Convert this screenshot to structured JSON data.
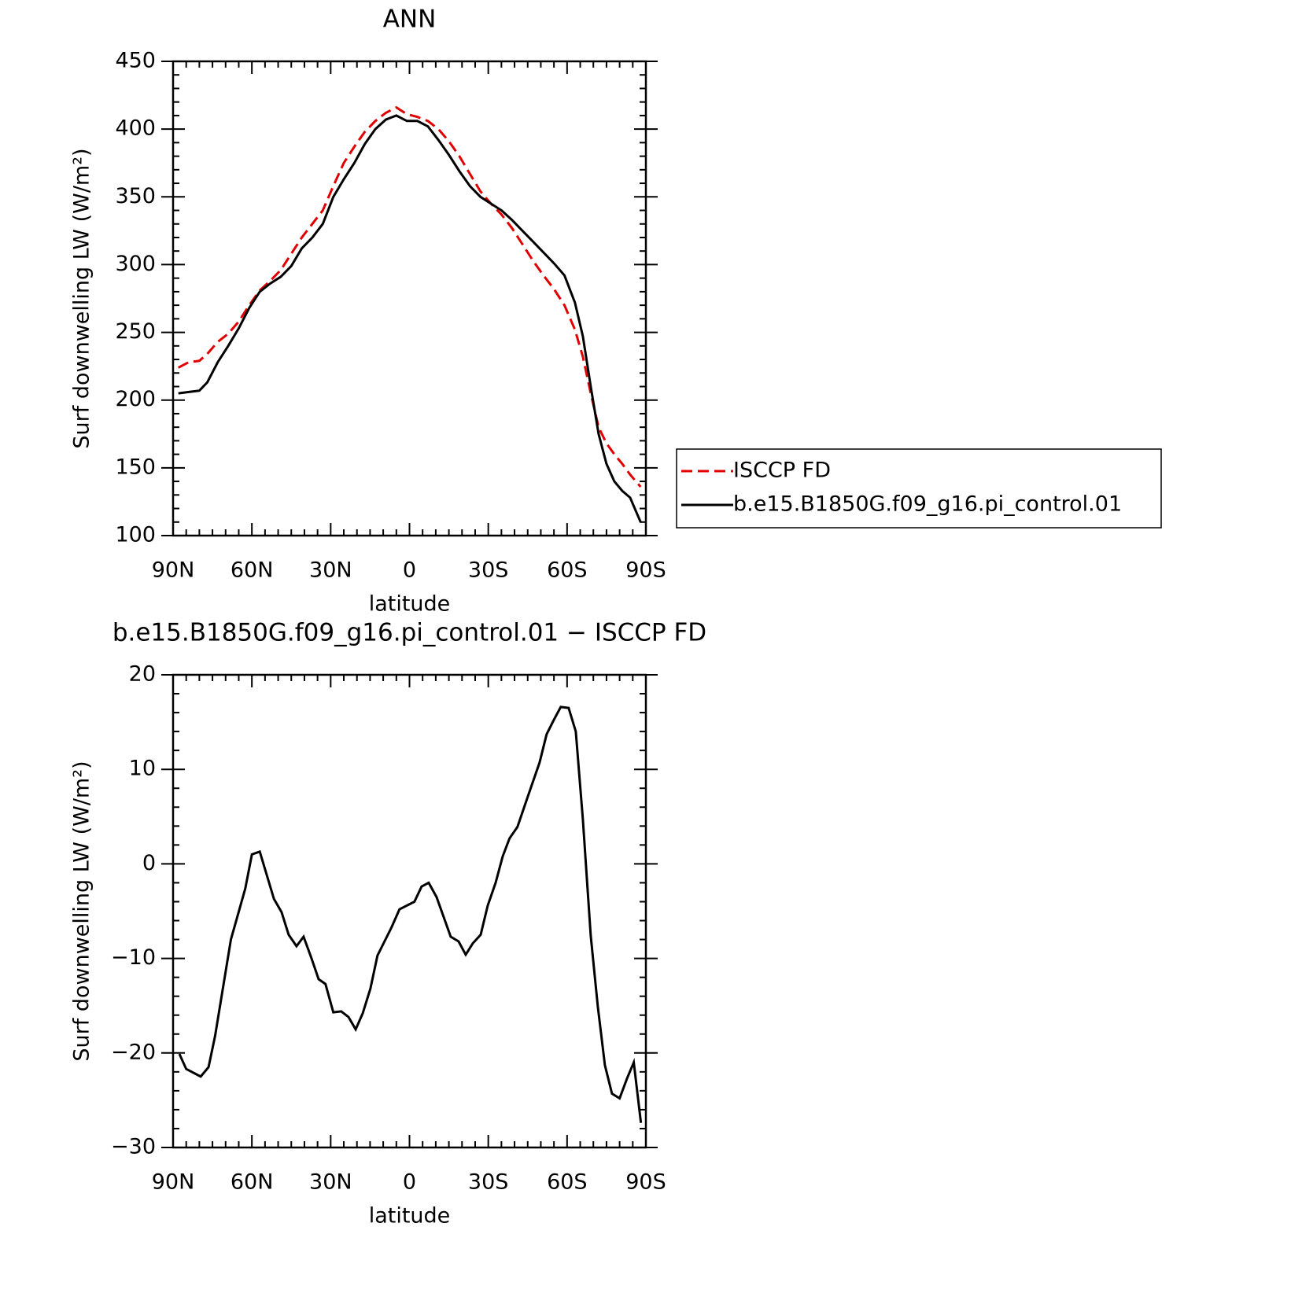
{
  "chart_data": [
    {
      "type": "line",
      "title": "ANN",
      "xlabel": "latitude",
      "ylabel": "Surf downwelling LW (W/m²)",
      "x": [
        88,
        84,
        80,
        77,
        73,
        69,
        65,
        61,
        57,
        53,
        49,
        45,
        41,
        37,
        33,
        29,
        25,
        21,
        17,
        13,
        9,
        5,
        1,
        -3,
        -7,
        -11,
        -15,
        -19,
        -23,
        -27,
        -31,
        -35,
        -39,
        -43,
        -47,
        -51,
        -55,
        -59,
        -63,
        -66,
        -69,
        -72,
        -75,
        -78,
        -81,
        -84,
        -88
      ],
      "series": [
        {
          "name": "ISCCP FD",
          "color": "#e00000",
          "linestyle": "dashed",
          "values": [
            224,
            228,
            229,
            234,
            243,
            249,
            258,
            270,
            281,
            288,
            296,
            308,
            320,
            330,
            340,
            358,
            375,
            387,
            398,
            406,
            412,
            416,
            411,
            409,
            406,
            400,
            391,
            380,
            367,
            354,
            345,
            337,
            327,
            315,
            303,
            292,
            282,
            270,
            252,
            232,
            205,
            180,
            168,
            160,
            153,
            145,
            136
          ]
        },
        {
          "name": "b.e15.B1850G.f09_g16.pi_control.01",
          "color": "#000000",
          "linestyle": "solid",
          "values": [
            205,
            206,
            207,
            213,
            228,
            240,
            253,
            268,
            280,
            286,
            291,
            299,
            312,
            320,
            330,
            350,
            363,
            375,
            389,
            400,
            407,
            410,
            406,
            406,
            402,
            392,
            381,
            369,
            358,
            350,
            345,
            340,
            333,
            325,
            317,
            309,
            301,
            292,
            272,
            247,
            210,
            175,
            153,
            140,
            133,
            128,
            110
          ]
        }
      ],
      "xlim": [
        90,
        -90
      ],
      "xticks": [
        {
          "value": 90,
          "label": "90N"
        },
        {
          "value": 60,
          "label": "60N"
        },
        {
          "value": 30,
          "label": "30N"
        },
        0,
        {
          "value": -30,
          "label": "30S"
        },
        {
          "value": -60,
          "label": "60S"
        },
        {
          "value": -90,
          "label": "90S"
        }
      ],
      "ylim": [
        100,
        450
      ],
      "yticks": [
        100,
        150,
        200,
        250,
        300,
        350,
        400,
        450
      ],
      "legend": "right"
    },
    {
      "type": "line",
      "title": "b.e15.B1850G.f09_g16.pi_control.01 − ISCCP FD",
      "xlabel": "latitude",
      "ylabel": "Surf downwelling LW (W/m²)",
      "x": [
        87.6,
        85,
        79.5,
        76.5,
        74,
        68,
        62.5,
        60,
        57,
        51.6,
        48.7,
        46,
        43,
        40.3,
        37.3,
        34.6,
        32,
        29,
        26,
        23.2,
        20.5,
        17.8,
        14.9,
        12.2,
        6.8,
        3.8,
        -1.9,
        -4.6,
        -7.3,
        -10.3,
        -15.7,
        -18.7,
        -21.4,
        -24.1,
        -27.1,
        -29.8,
        -32.8,
        -35.5,
        -38.1,
        -41.1,
        -43.8,
        -46.5,
        -49.5,
        -52.2,
        -54.9,
        -57.6,
        -60.6,
        -63.3,
        -66,
        -69,
        -71.7,
        -74.4,
        -77.1,
        -80,
        -82.8,
        -85.4,
        -88.1
      ],
      "series": [
        {
          "color": "#000000",
          "linestyle": "solid",
          "values": [
            -20.1,
            -21.7,
            -22.5,
            -21.5,
            -18.2,
            -8.0,
            -2.6,
            1.0,
            1.3,
            -3.7,
            -5.1,
            -7.5,
            -8.7,
            -7.7,
            -10,
            -12.2,
            -12.7,
            -15.7,
            -15.6,
            -16.2,
            -17.5,
            -15.8,
            -13.2,
            -9.7,
            -6.7,
            -4.8,
            -4.0,
            -2.4,
            -2.0,
            -3.5,
            -7.7,
            -8.2,
            -9.6,
            -8.4,
            -7.5,
            -4.4,
            -2.0,
            0.8,
            2.7,
            3.9,
            6.1,
            8.3,
            10.7,
            13.7,
            15.2,
            16.6,
            16.5,
            14.0,
            4.7,
            -7.6,
            -15.1,
            -21.3,
            -24.3,
            -24.8,
            -22.7,
            -21.0,
            -27.4
          ]
        }
      ],
      "xlim": [
        90,
        -90
      ],
      "xticks": [
        {
          "value": 90,
          "label": "90N"
        },
        {
          "value": 60,
          "label": "60N"
        },
        {
          "value": 30,
          "label": "30N"
        },
        0,
        {
          "value": -30,
          "label": "30S"
        },
        {
          "value": -60,
          "label": "60S"
        },
        {
          "value": -90,
          "label": "90S"
        }
      ],
      "ylim": [
        -30,
        20
      ],
      "yticks": [
        {
          "value": -30,
          "label": "−30"
        },
        {
          "value": -20,
          "label": "−20"
        },
        {
          "value": -10,
          "label": "−10"
        },
        0,
        10,
        20
      ]
    }
  ]
}
